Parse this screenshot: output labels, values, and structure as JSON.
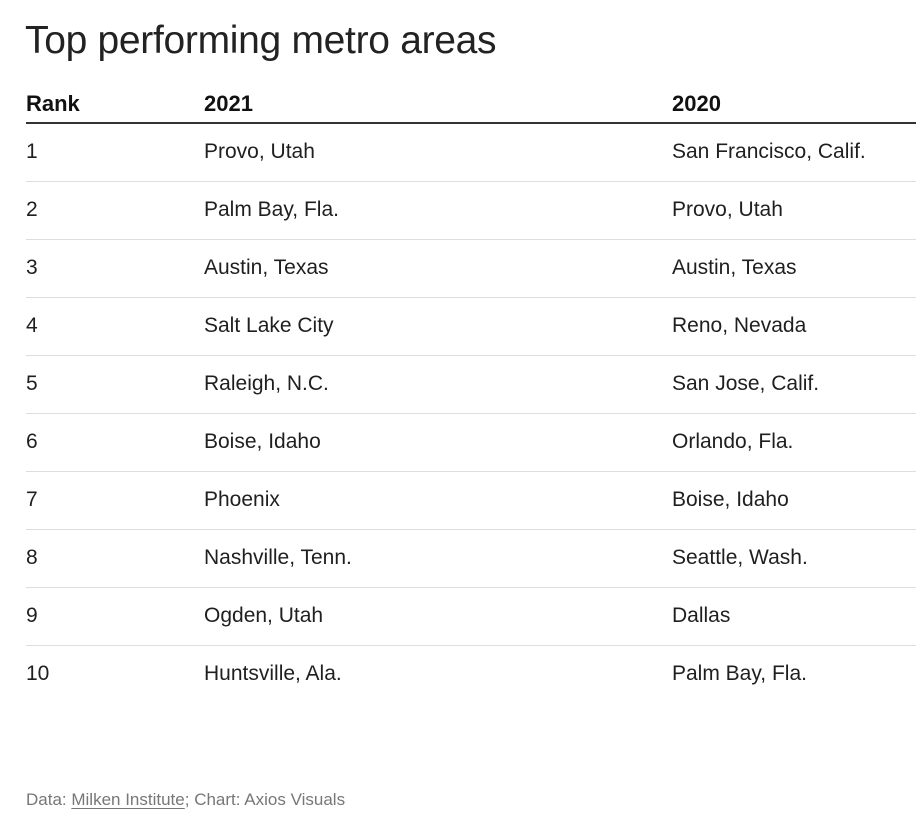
{
  "chart_data": {
    "type": "table",
    "title": "Top performing metro areas",
    "columns": [
      "Rank",
      "2021",
      "2020"
    ],
    "rows": [
      {
        "rank": "1",
        "y2021": "Provo, Utah",
        "y2020": "San Francisco, Calif."
      },
      {
        "rank": "2",
        "y2021": "Palm Bay, Fla.",
        "y2020": "Provo, Utah"
      },
      {
        "rank": "3",
        "y2021": "Austin, Texas",
        "y2020": "Austin, Texas"
      },
      {
        "rank": "4",
        "y2021": "Salt Lake City",
        "y2020": "Reno, Nevada"
      },
      {
        "rank": "5",
        "y2021": "Raleigh, N.C.",
        "y2020": "San Jose, Calif."
      },
      {
        "rank": "6",
        "y2021": "Boise, Idaho",
        "y2020": "Orlando, Fla."
      },
      {
        "rank": "7",
        "y2021": "Phoenix",
        "y2020": "Boise, Idaho"
      },
      {
        "rank": "8",
        "y2021": "Nashville, Tenn.",
        "y2020": "Seattle, Wash."
      },
      {
        "rank": "9",
        "y2021": "Ogden, Utah",
        "y2020": "Dallas"
      },
      {
        "rank": "10",
        "y2021": "Huntsville, Ala.",
        "y2020": "Palm Bay, Fla."
      }
    ]
  },
  "footer": {
    "data_prefix": "Data: ",
    "source_link": "Milken Institute",
    "suffix": "; Chart: Axios Visuals"
  },
  "colors": {
    "text": "#1f1f1f",
    "header_rule": "#333333",
    "row_rule": "#dddddd",
    "footer_text": "#777777"
  }
}
